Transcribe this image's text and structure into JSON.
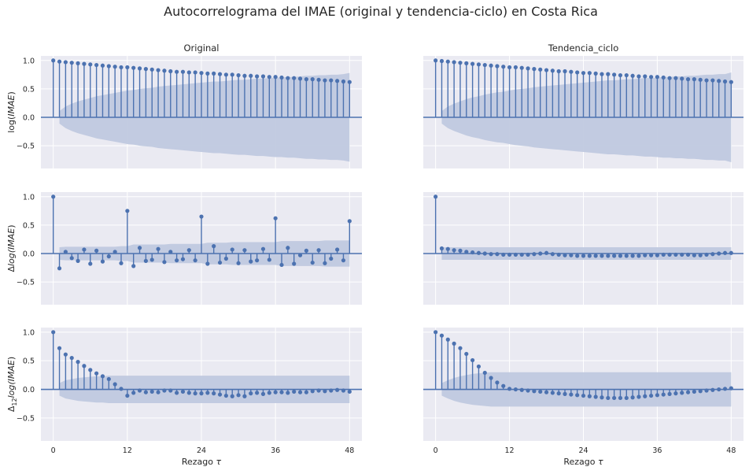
{
  "figure": {
    "title": "Autocorrelograma del IMAE (original y tendencia-ciclo) en Costa Rica",
    "column_titles": [
      "Original",
      "Tendencia_ciclo"
    ],
    "row_ylabels": [
      {
        "base": "log(",
        "italic": "IMAE",
        "sub": "",
        "close": ")",
        "prefix": "",
        "pre_italic": ""
      },
      {
        "prefix": "Δ",
        "base": "",
        "pre_italic": "log(",
        "italic": "IMAE",
        "sub": "",
        "close": ")"
      },
      {
        "prefix": "Δ",
        "sub": "12",
        "pre_italic": "log(",
        "italic": "IMAE",
        "base": "",
        "close": ")"
      }
    ],
    "xlabel_text": "Rezago ",
    "xlabel_symbol": "τ",
    "xticks": [
      0,
      12,
      24,
      36,
      48
    ],
    "yticks": [
      1.0,
      0.5,
      0.0,
      -0.5
    ],
    "ytick_labels": [
      "1.0",
      "0.5",
      "0.0",
      "−0.5"
    ]
  },
  "colors": {
    "background": "#eaeaf2",
    "grid": "#ffffff",
    "stem": "#4c72b0",
    "band": "#c0c9df"
  },
  "chart_data": [
    {
      "type": "acf-stem",
      "panel": "row1-original",
      "xlim": [
        -2,
        50
      ],
      "ylim": [
        -0.9,
        1.08
      ],
      "x": [
        0,
        1,
        2,
        3,
        4,
        5,
        6,
        7,
        8,
        9,
        10,
        11,
        12,
        13,
        14,
        15,
        16,
        17,
        18,
        19,
        20,
        21,
        22,
        23,
        24,
        25,
        26,
        27,
        28,
        29,
        30,
        31,
        32,
        33,
        34,
        35,
        36,
        37,
        38,
        39,
        40,
        41,
        42,
        43,
        44,
        45,
        46,
        47,
        48
      ],
      "values": [
        1.0,
        0.98,
        0.97,
        0.96,
        0.95,
        0.94,
        0.93,
        0.92,
        0.91,
        0.9,
        0.89,
        0.88,
        0.88,
        0.87,
        0.86,
        0.85,
        0.84,
        0.83,
        0.82,
        0.81,
        0.8,
        0.8,
        0.79,
        0.79,
        0.78,
        0.77,
        0.77,
        0.76,
        0.75,
        0.75,
        0.74,
        0.73,
        0.73,
        0.72,
        0.72,
        0.71,
        0.71,
        0.7,
        0.69,
        0.69,
        0.68,
        0.67,
        0.67,
        0.66,
        0.65,
        0.65,
        0.64,
        0.63,
        0.62
      ],
      "confint": [
        0.0,
        0.11,
        0.19,
        0.24,
        0.28,
        0.31,
        0.34,
        0.37,
        0.39,
        0.41,
        0.43,
        0.45,
        0.47,
        0.48,
        0.5,
        0.51,
        0.52,
        0.54,
        0.55,
        0.56,
        0.57,
        0.58,
        0.59,
        0.6,
        0.61,
        0.62,
        0.63,
        0.63,
        0.64,
        0.65,
        0.66,
        0.66,
        0.67,
        0.68,
        0.68,
        0.69,
        0.7,
        0.7,
        0.71,
        0.71,
        0.72,
        0.73,
        0.73,
        0.74,
        0.74,
        0.75,
        0.75,
        0.76,
        0.78
      ]
    },
    {
      "type": "acf-stem",
      "panel": "row1-tendencia",
      "xlim": [
        -2,
        50
      ],
      "ylim": [
        -0.9,
        1.08
      ],
      "x": [
        0,
        1,
        2,
        3,
        4,
        5,
        6,
        7,
        8,
        9,
        10,
        11,
        12,
        13,
        14,
        15,
        16,
        17,
        18,
        19,
        20,
        21,
        22,
        23,
        24,
        25,
        26,
        27,
        28,
        29,
        30,
        31,
        32,
        33,
        34,
        35,
        36,
        37,
        38,
        39,
        40,
        41,
        42,
        43,
        44,
        45,
        46,
        47,
        48
      ],
      "values": [
        1.0,
        0.99,
        0.98,
        0.97,
        0.96,
        0.95,
        0.94,
        0.93,
        0.92,
        0.91,
        0.9,
        0.89,
        0.88,
        0.88,
        0.87,
        0.86,
        0.85,
        0.84,
        0.83,
        0.82,
        0.81,
        0.81,
        0.8,
        0.79,
        0.78,
        0.78,
        0.77,
        0.76,
        0.76,
        0.75,
        0.74,
        0.74,
        0.73,
        0.72,
        0.72,
        0.71,
        0.71,
        0.7,
        0.69,
        0.69,
        0.68,
        0.67,
        0.67,
        0.66,
        0.65,
        0.65,
        0.64,
        0.63,
        0.62
      ],
      "confint": [
        0.0,
        0.11,
        0.19,
        0.24,
        0.28,
        0.32,
        0.35,
        0.37,
        0.4,
        0.42,
        0.44,
        0.45,
        0.47,
        0.49,
        0.5,
        0.51,
        0.53,
        0.54,
        0.55,
        0.56,
        0.57,
        0.58,
        0.59,
        0.6,
        0.61,
        0.62,
        0.63,
        0.64,
        0.65,
        0.65,
        0.66,
        0.67,
        0.67,
        0.68,
        0.69,
        0.69,
        0.7,
        0.71,
        0.71,
        0.72,
        0.72,
        0.73,
        0.73,
        0.74,
        0.75,
        0.75,
        0.76,
        0.76,
        0.79
      ]
    },
    {
      "type": "acf-stem",
      "panel": "row2-original",
      "xlim": [
        -2,
        50
      ],
      "ylim": [
        -0.9,
        1.08
      ],
      "x": [
        0,
        1,
        2,
        3,
        4,
        5,
        6,
        7,
        8,
        9,
        10,
        11,
        12,
        13,
        14,
        15,
        16,
        17,
        18,
        19,
        20,
        21,
        22,
        23,
        24,
        25,
        26,
        27,
        28,
        29,
        30,
        31,
        32,
        33,
        34,
        35,
        36,
        37,
        38,
        39,
        40,
        41,
        42,
        43,
        44,
        45,
        46,
        47,
        48
      ],
      "values": [
        1.0,
        -0.26,
        0.03,
        -0.08,
        -0.13,
        0.07,
        -0.18,
        0.05,
        -0.14,
        -0.05,
        0.03,
        -0.17,
        0.75,
        -0.22,
        0.1,
        -0.13,
        -0.11,
        0.08,
        -0.15,
        0.03,
        -0.12,
        -0.1,
        0.06,
        -0.12,
        0.65,
        -0.18,
        0.13,
        -0.16,
        -0.09,
        0.07,
        -0.17,
        0.06,
        -0.14,
        -0.12,
        0.08,
        -0.11,
        0.62,
        -0.2,
        0.1,
        -0.18,
        -0.03,
        0.05,
        -0.16,
        0.06,
        -0.17,
        -0.09,
        0.07,
        -0.12,
        0.57
      ],
      "confint": [
        0.0,
        0.11,
        0.12,
        0.12,
        0.12,
        0.12,
        0.12,
        0.12,
        0.12,
        0.12,
        0.12,
        0.13,
        0.13,
        0.16,
        0.16,
        0.16,
        0.16,
        0.16,
        0.16,
        0.17,
        0.17,
        0.17,
        0.17,
        0.17,
        0.17,
        0.19,
        0.19,
        0.19,
        0.19,
        0.2,
        0.2,
        0.2,
        0.2,
        0.2,
        0.2,
        0.2,
        0.2,
        0.22,
        0.22,
        0.22,
        0.22,
        0.22,
        0.22,
        0.22,
        0.23,
        0.23,
        0.23,
        0.23,
        0.23
      ]
    },
    {
      "type": "acf-stem",
      "panel": "row2-tendencia",
      "xlim": [
        -2,
        50
      ],
      "ylim": [
        -0.9,
        1.08
      ],
      "x": [
        0,
        1,
        2,
        3,
        4,
        5,
        6,
        7,
        8,
        9,
        10,
        11,
        12,
        13,
        14,
        15,
        16,
        17,
        18,
        19,
        20,
        21,
        22,
        23,
        24,
        25,
        26,
        27,
        28,
        29,
        30,
        31,
        32,
        33,
        34,
        35,
        36,
        37,
        38,
        39,
        40,
        41,
        42,
        43,
        44,
        45,
        46,
        47,
        48
      ],
      "values": [
        1.0,
        0.09,
        0.08,
        0.06,
        0.05,
        0.03,
        0.02,
        0.01,
        0.0,
        -0.01,
        -0.01,
        -0.02,
        -0.02,
        -0.02,
        -0.02,
        -0.02,
        -0.01,
        0.0,
        0.01,
        -0.01,
        -0.02,
        -0.03,
        -0.03,
        -0.04,
        -0.04,
        -0.04,
        -0.04,
        -0.04,
        -0.04,
        -0.04,
        -0.04,
        -0.04,
        -0.04,
        -0.04,
        -0.03,
        -0.03,
        -0.03,
        -0.02,
        -0.02,
        -0.02,
        -0.02,
        -0.02,
        -0.03,
        -0.03,
        -0.02,
        -0.01,
        0.0,
        0.01,
        0.01
      ],
      "confint": [
        0.0,
        0.11,
        0.11,
        0.11,
        0.11,
        0.11,
        0.11,
        0.11,
        0.11,
        0.11,
        0.11,
        0.11,
        0.11,
        0.11,
        0.11,
        0.11,
        0.11,
        0.11,
        0.11,
        0.11,
        0.11,
        0.11,
        0.11,
        0.11,
        0.11,
        0.11,
        0.11,
        0.11,
        0.11,
        0.11,
        0.11,
        0.11,
        0.11,
        0.11,
        0.11,
        0.11,
        0.11,
        0.11,
        0.11,
        0.11,
        0.11,
        0.11,
        0.11,
        0.11,
        0.11,
        0.11,
        0.11,
        0.11,
        0.11
      ]
    },
    {
      "type": "acf-stem",
      "panel": "row3-original",
      "xlim": [
        -2,
        50
      ],
      "ylim": [
        -0.9,
        1.08
      ],
      "x": [
        0,
        1,
        2,
        3,
        4,
        5,
        6,
        7,
        8,
        9,
        10,
        11,
        12,
        13,
        14,
        15,
        16,
        17,
        18,
        19,
        20,
        21,
        22,
        23,
        24,
        25,
        26,
        27,
        28,
        29,
        30,
        31,
        32,
        33,
        34,
        35,
        36,
        37,
        38,
        39,
        40,
        41,
        42,
        43,
        44,
        45,
        46,
        47,
        48
      ],
      "values": [
        1.0,
        0.72,
        0.61,
        0.55,
        0.48,
        0.41,
        0.34,
        0.28,
        0.23,
        0.18,
        0.09,
        0.01,
        -0.11,
        -0.06,
        -0.02,
        -0.05,
        -0.04,
        -0.05,
        -0.02,
        -0.02,
        -0.06,
        -0.04,
        -0.06,
        -0.07,
        -0.07,
        -0.06,
        -0.07,
        -0.09,
        -0.11,
        -0.12,
        -0.1,
        -0.12,
        -0.07,
        -0.06,
        -0.08,
        -0.06,
        -0.05,
        -0.05,
        -0.06,
        -0.04,
        -0.05,
        -0.05,
        -0.03,
        -0.02,
        -0.03,
        -0.02,
        -0.01,
        -0.02,
        -0.04
      ],
      "confint": [
        0.0,
        0.11,
        0.16,
        0.18,
        0.2,
        0.21,
        0.22,
        0.23,
        0.23,
        0.24,
        0.24,
        0.24,
        0.24,
        0.24,
        0.24,
        0.24,
        0.24,
        0.24,
        0.24,
        0.24,
        0.24,
        0.24,
        0.24,
        0.24,
        0.24,
        0.24,
        0.24,
        0.24,
        0.24,
        0.24,
        0.24,
        0.24,
        0.24,
        0.24,
        0.24,
        0.24,
        0.24,
        0.24,
        0.24,
        0.24,
        0.24,
        0.24,
        0.24,
        0.24,
        0.24,
        0.24,
        0.24,
        0.24,
        0.24
      ]
    },
    {
      "type": "acf-stem",
      "panel": "row3-tendencia",
      "xlim": [
        -2,
        50
      ],
      "ylim": [
        -0.9,
        1.08
      ],
      "x": [
        0,
        1,
        2,
        3,
        4,
        5,
        6,
        7,
        8,
        9,
        10,
        11,
        12,
        13,
        14,
        15,
        16,
        17,
        18,
        19,
        20,
        21,
        22,
        23,
        24,
        25,
        26,
        27,
        28,
        29,
        30,
        31,
        32,
        33,
        34,
        35,
        36,
        37,
        38,
        39,
        40,
        41,
        42,
        43,
        44,
        45,
        46,
        47,
        48
      ],
      "values": [
        1.0,
        0.94,
        0.87,
        0.8,
        0.72,
        0.62,
        0.51,
        0.4,
        0.29,
        0.2,
        0.12,
        0.06,
        0.01,
        0.0,
        -0.01,
        -0.02,
        -0.03,
        -0.04,
        -0.05,
        -0.06,
        -0.07,
        -0.08,
        -0.09,
        -0.1,
        -0.11,
        -0.12,
        -0.13,
        -0.14,
        -0.15,
        -0.15,
        -0.15,
        -0.15,
        -0.14,
        -0.13,
        -0.12,
        -0.11,
        -0.1,
        -0.09,
        -0.08,
        -0.07,
        -0.06,
        -0.05,
        -0.04,
        -0.03,
        -0.02,
        -0.01,
        0.0,
        0.01,
        0.02
      ],
      "confint": [
        0.0,
        0.11,
        0.16,
        0.2,
        0.23,
        0.25,
        0.27,
        0.28,
        0.29,
        0.3,
        0.3,
        0.3,
        0.3,
        0.3,
        0.3,
        0.3,
        0.3,
        0.3,
        0.3,
        0.3,
        0.3,
        0.3,
        0.3,
        0.3,
        0.3,
        0.3,
        0.3,
        0.3,
        0.3,
        0.3,
        0.3,
        0.3,
        0.3,
        0.3,
        0.3,
        0.3,
        0.3,
        0.3,
        0.3,
        0.3,
        0.3,
        0.3,
        0.3,
        0.3,
        0.3,
        0.3,
        0.3,
        0.3,
        0.3
      ]
    }
  ]
}
